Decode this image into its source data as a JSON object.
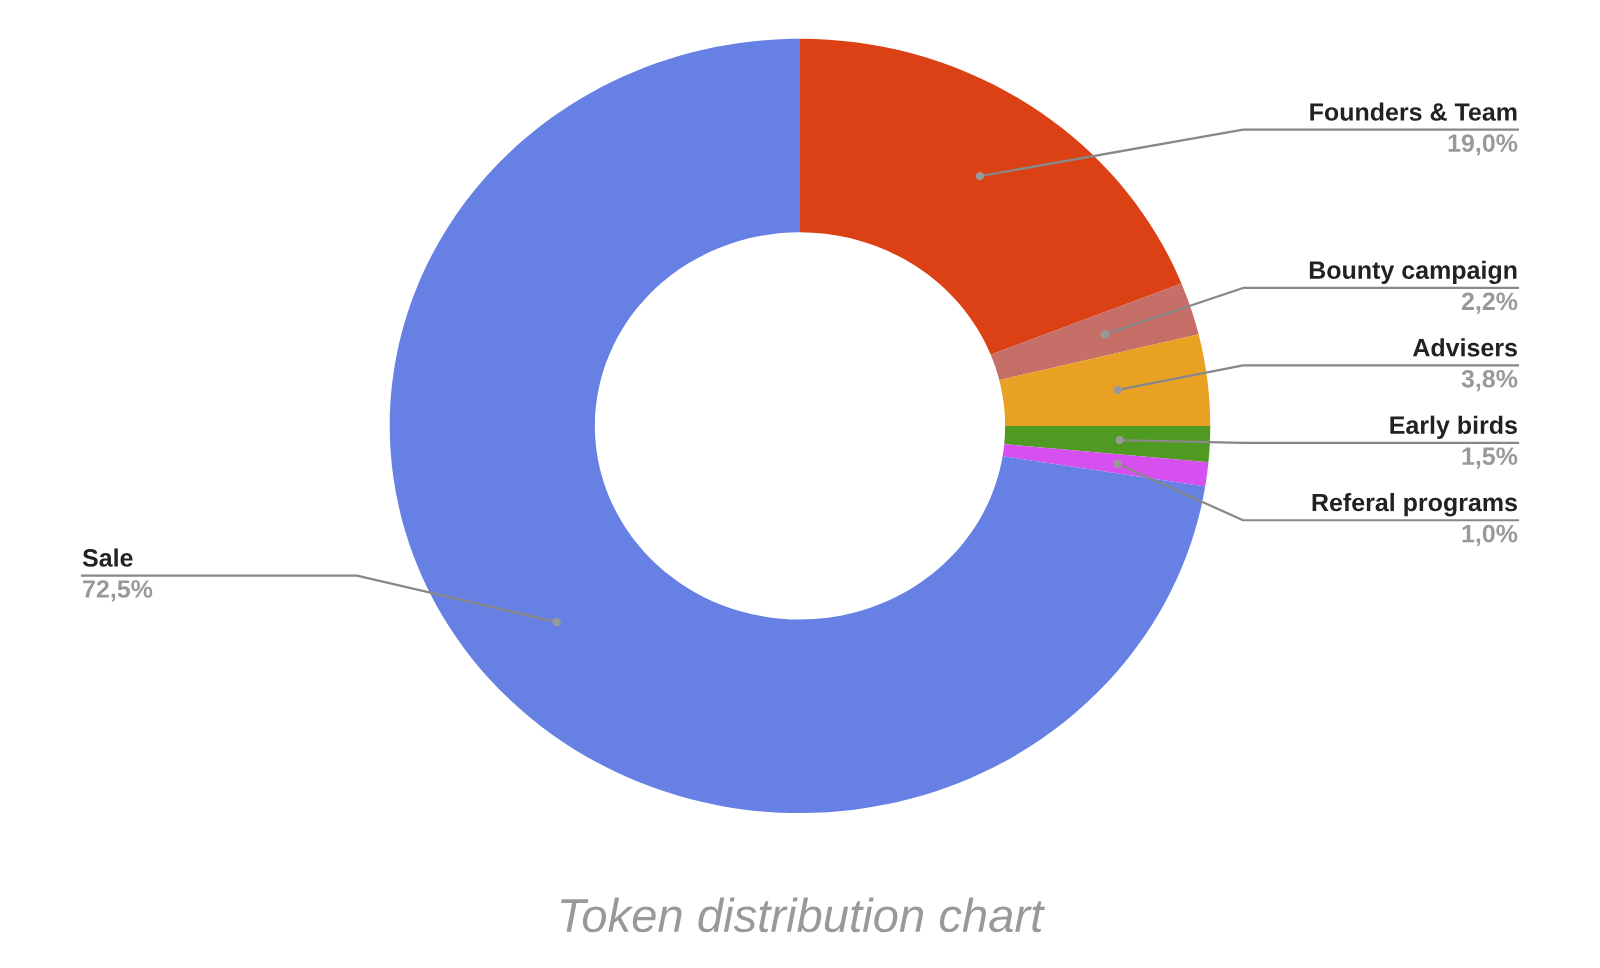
{
  "chart_data": {
    "type": "donut",
    "title": "Token distribution chart",
    "categories": [
      "Founders & Team",
      "Bounty campaign",
      "Advisers",
      "Early birds",
      "Referal programs",
      "Sale"
    ],
    "values": [
      19.0,
      2.2,
      3.8,
      1.5,
      1.0,
      72.5
    ],
    "value_labels": [
      "19,0%",
      "2,2%",
      "3,8%",
      "1,5%",
      "1,0%",
      "72,5%"
    ],
    "colors": [
      "#dc4116",
      "#c66e68",
      "#e8a122",
      "#4f9a22",
      "#d84ff0",
      "#6680e3"
    ],
    "legend": false
  }
}
